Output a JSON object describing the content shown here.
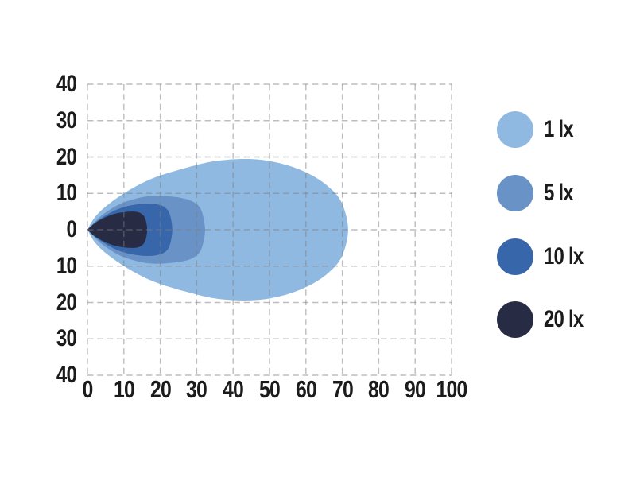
{
  "chart_data": {
    "type": "area",
    "subtype": "isolux-beam-pattern",
    "description": "Nested isolux illuminance contours of a lamp beam, pointed at origin and spreading to the right",
    "title": "",
    "xlabel": "",
    "ylabel": "",
    "x_axis": {
      "range": [
        0,
        100
      ],
      "tick_step": 10,
      "ticks": [
        "0",
        "10",
        "20",
        "30",
        "40",
        "50",
        "60",
        "70",
        "80",
        "90",
        "100"
      ]
    },
    "y_axis": {
      "range": [
        -40,
        40
      ],
      "tick_step": 10,
      "ticks": [
        "40",
        "30",
        "20",
        "10",
        "0",
        "10",
        "20",
        "30",
        "40"
      ]
    },
    "grid": {
      "on": true,
      "style": "dashed",
      "color": "#c8c8c8"
    },
    "text_color": "#1b1b1b",
    "background_color": "#ffffff",
    "levels": [
      {
        "label": "1 lx",
        "color": "#90b9e1",
        "reach_m": 71.6,
        "max_half_width_m": 19.4,
        "outline": [
          [
            0,
            0
          ],
          [
            2,
            3.4
          ],
          [
            5,
            6.4
          ],
          [
            10,
            10
          ],
          [
            15,
            12.8
          ],
          [
            20,
            14.9
          ],
          [
            27,
            17
          ],
          [
            34,
            18.7
          ],
          [
            41,
            19.4
          ],
          [
            48,
            19.2
          ],
          [
            55,
            17.7
          ],
          [
            61,
            15.3
          ],
          [
            66,
            12
          ],
          [
            69.8,
            7.5
          ],
          [
            71.6,
            0
          ]
        ]
      },
      {
        "label": "5 lx",
        "color": "#6992c7",
        "reach_m": 32.3,
        "max_half_width_m": 9.3,
        "outline": [
          [
            0,
            0
          ],
          [
            2,
            2.1
          ],
          [
            4,
            4.0
          ],
          [
            8,
            6.6
          ],
          [
            12,
            8.2
          ],
          [
            17,
            9.25
          ],
          [
            22,
            9.2
          ],
          [
            26,
            8.7
          ],
          [
            29,
            7.7
          ],
          [
            31.2,
            5.5
          ],
          [
            32.3,
            0
          ]
        ]
      },
      {
        "label": "10 lx",
        "color": "#3767aa",
        "reach_m": 23.3,
        "max_half_width_m": 7.2,
        "outline": [
          [
            0,
            0
          ],
          [
            1.8,
            1.7
          ],
          [
            4,
            3.3
          ],
          [
            8,
            5.5
          ],
          [
            12,
            6.7
          ],
          [
            16,
            7.2
          ],
          [
            19,
            7.0
          ],
          [
            21.2,
            6.2
          ],
          [
            22.6,
            4.3
          ],
          [
            23.3,
            0
          ]
        ]
      },
      {
        "label": "20 lx",
        "color": "#272c44",
        "reach_m": 16.4,
        "max_half_width_m": 5.0,
        "outline": [
          [
            0,
            0
          ],
          [
            1.5,
            1.4
          ],
          [
            3,
            2.4
          ],
          [
            6,
            3.9
          ],
          [
            9,
            4.7
          ],
          [
            12,
            5.0
          ],
          [
            14,
            4.8
          ],
          [
            15.4,
            3.9
          ],
          [
            16.1,
            2.3
          ],
          [
            16.4,
            0
          ]
        ]
      }
    ],
    "legend": {
      "position": "right",
      "items": [
        "1 lx",
        "5 lx",
        "10 lx",
        "20 lx"
      ]
    }
  }
}
